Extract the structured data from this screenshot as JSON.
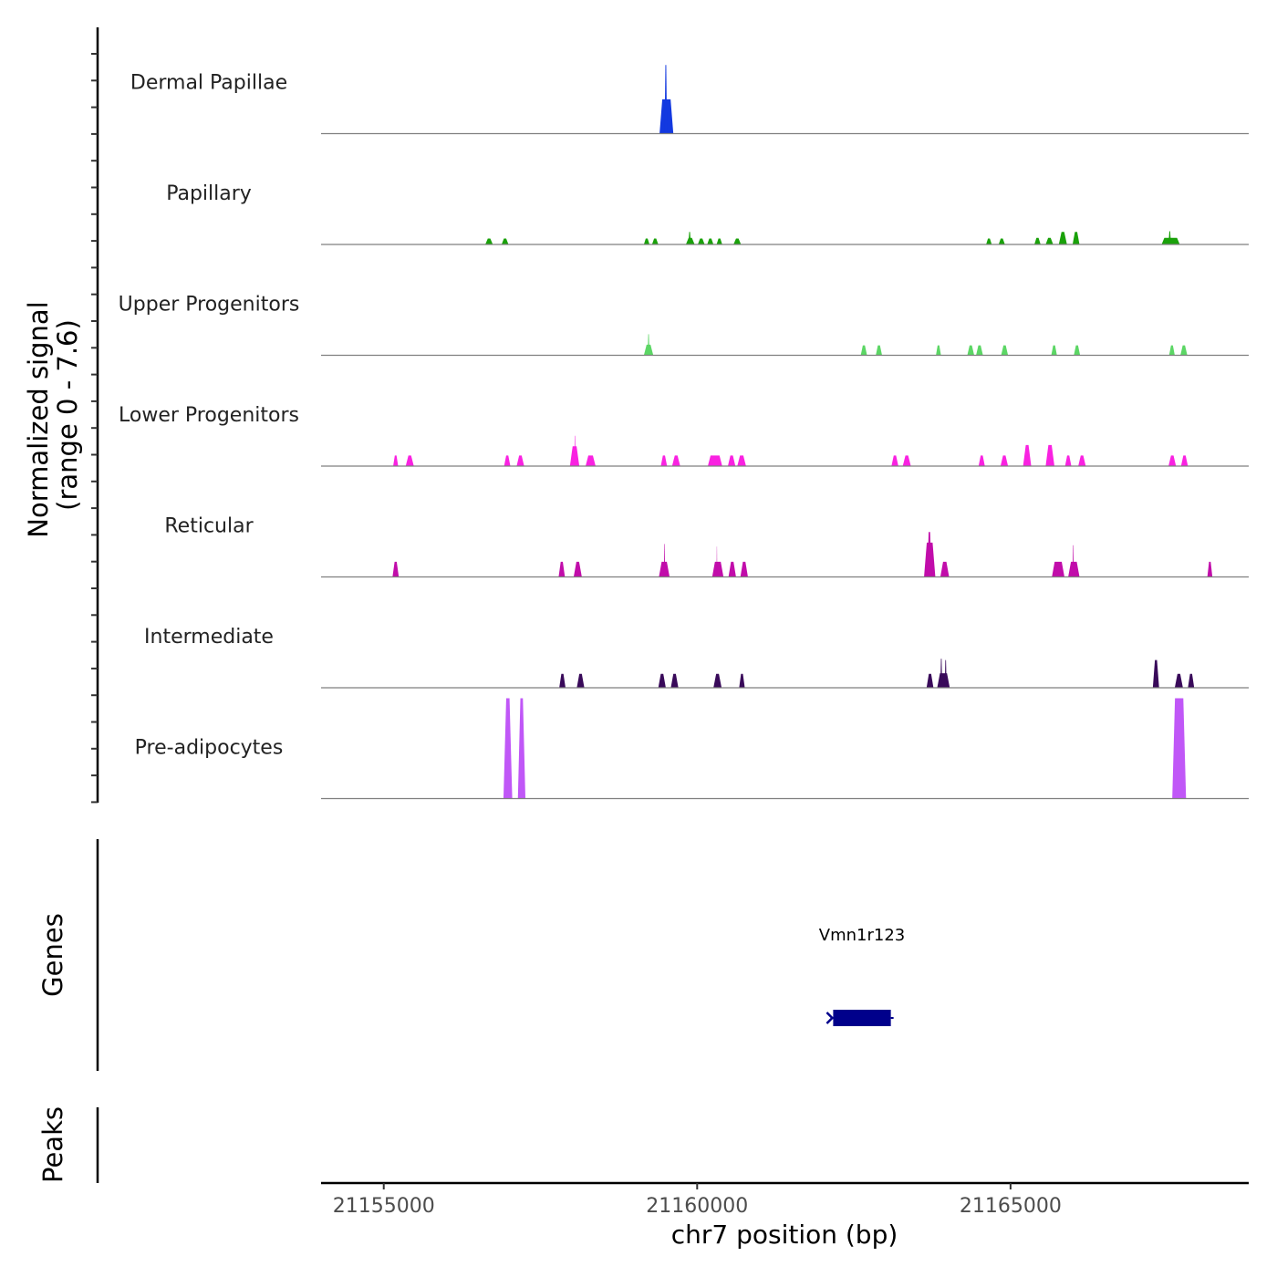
{
  "chart_data": {
    "type": "area",
    "chromosome": "chr7",
    "xlabel": "chr7 position (bp)",
    "xlim": [
      21154000,
      21168800
    ],
    "x_ticks": [
      21155000,
      21160000,
      21165000
    ],
    "x_tick_labels": [
      "21155000",
      "21160000",
      "21165000"
    ],
    "signal_ylabel": [
      "Normalized signal",
      "(range 0 - 7.6)"
    ],
    "ylim": [
      0,
      7.6
    ],
    "tracks": [
      {
        "name": "Dermal Papillae",
        "color": "#1339E0",
        "peaks": [
          [
            21159400,
            21159620,
            2.6
          ],
          [
            21159480,
            21159520,
            5.2
          ]
        ]
      },
      {
        "name": "Papillary",
        "color": "#1AA10A",
        "peaks": [
          [
            21156620,
            21156740,
            0.45
          ],
          [
            21156880,
            21156990,
            0.45
          ],
          [
            21159150,
            21159240,
            0.45
          ],
          [
            21159280,
            21159380,
            0.45
          ],
          [
            21159820,
            21159960,
            0.5
          ],
          [
            21159860,
            21159900,
            0.95
          ],
          [
            21160010,
            21160120,
            0.45
          ],
          [
            21160160,
            21160260,
            0.45
          ],
          [
            21160310,
            21160400,
            0.45
          ],
          [
            21160580,
            21160700,
            0.45
          ],
          [
            21164610,
            21164700,
            0.45
          ],
          [
            21164810,
            21164910,
            0.45
          ],
          [
            21165380,
            21165480,
            0.5
          ],
          [
            21165560,
            21165680,
            0.5
          ],
          [
            21165770,
            21165900,
            0.95
          ],
          [
            21165990,
            21166100,
            0.95
          ],
          [
            21167410,
            21167700,
            0.5
          ],
          [
            21167520,
            21167560,
            1.0
          ]
        ]
      },
      {
        "name": "Upper Progenitors",
        "color": "#5CD665",
        "peaks": [
          [
            21159150,
            21159300,
            0.8
          ],
          [
            21159210,
            21159240,
            1.6
          ],
          [
            21162610,
            21162710,
            0.75
          ],
          [
            21162850,
            21162950,
            0.75
          ],
          [
            21163810,
            21163890,
            0.75
          ],
          [
            21164310,
            21164420,
            0.75
          ],
          [
            21164450,
            21164560,
            0.75
          ],
          [
            21164850,
            21164960,
            0.75
          ],
          [
            21165650,
            21165740,
            0.75
          ],
          [
            21166010,
            21166110,
            0.75
          ],
          [
            21167530,
            21167620,
            0.75
          ],
          [
            21167710,
            21167820,
            0.75
          ]
        ]
      },
      {
        "name": "Lower Progenitors",
        "color": "#F922E1",
        "peaks": [
          [
            21155150,
            21155230,
            0.8
          ],
          [
            21155350,
            21155480,
            0.8
          ],
          [
            21156920,
            21157020,
            0.8
          ],
          [
            21157120,
            21157240,
            0.8
          ],
          [
            21157970,
            21158120,
            1.5
          ],
          [
            21158040,
            21158060,
            2.3
          ],
          [
            21158220,
            21158380,
            0.8
          ],
          [
            21159420,
            21159520,
            0.8
          ],
          [
            21159600,
            21159730,
            0.8
          ],
          [
            21160170,
            21160400,
            0.8
          ],
          [
            21160490,
            21160610,
            0.8
          ],
          [
            21160640,
            21160780,
            0.8
          ],
          [
            21163100,
            21163210,
            0.8
          ],
          [
            21163280,
            21163410,
            0.8
          ],
          [
            21164490,
            21164590,
            0.8
          ],
          [
            21164840,
            21164960,
            0.8
          ],
          [
            21165200,
            21165330,
            1.6
          ],
          [
            21165560,
            21165700,
            1.6
          ],
          [
            21165870,
            21165970,
            0.8
          ],
          [
            21166080,
            21166200,
            0.8
          ],
          [
            21167520,
            21167640,
            0.8
          ],
          [
            21167720,
            21167830,
            0.8
          ]
        ]
      },
      {
        "name": "Reticular",
        "color": "#C10DAA",
        "peaks": [
          [
            21155140,
            21155240,
            1.15
          ],
          [
            21157790,
            21157890,
            1.15
          ],
          [
            21158030,
            21158160,
            1.15
          ],
          [
            21159390,
            21159560,
            1.15
          ],
          [
            21159470,
            21159490,
            2.5
          ],
          [
            21160240,
            21160420,
            1.15
          ],
          [
            21160310,
            21160320,
            2.3
          ],
          [
            21160500,
            21160620,
            1.15
          ],
          [
            21160690,
            21160810,
            1.15
          ],
          [
            21163620,
            21163800,
            2.6
          ],
          [
            21163670,
            21163740,
            3.4
          ],
          [
            21163880,
            21164020,
            1.15
          ],
          [
            21165660,
            21165860,
            1.15
          ],
          [
            21165920,
            21166100,
            1.15
          ],
          [
            21165990,
            21166010,
            2.4
          ],
          [
            21168140,
            21168220,
            1.15
          ]
        ]
      },
      {
        "name": "Intermediate",
        "color": "#390A5A",
        "peaks": [
          [
            21157800,
            21157900,
            1.05
          ],
          [
            21158080,
            21158200,
            1.05
          ],
          [
            21159380,
            21159500,
            1.05
          ],
          [
            21159580,
            21159700,
            1.05
          ],
          [
            21160260,
            21160390,
            1.05
          ],
          [
            21160670,
            21160760,
            1.05
          ],
          [
            21163660,
            21163770,
            1.05
          ],
          [
            21163830,
            21164030,
            1.1
          ],
          [
            21163880,
            21163910,
            2.2
          ],
          [
            21163950,
            21163980,
            2.1
          ],
          [
            21167270,
            21167370,
            2.1
          ],
          [
            21167620,
            21167750,
            1.05
          ],
          [
            21167830,
            21167930,
            1.05
          ]
        ]
      },
      {
        "name": "Pre-adipocytes",
        "color": "#C057F7",
        "peaks": [
          [
            21156910,
            21157050,
            7.6
          ],
          [
            21157140,
            21157260,
            7.6
          ],
          [
            21167580,
            21167800,
            7.6
          ]
        ]
      }
    ],
    "genes_label": "Genes",
    "genes": [
      {
        "name": "Vmn1r123",
        "start": 21162170,
        "end": 21163090,
        "strand": "-",
        "color": "#00008B"
      }
    ],
    "peaks_label": "Peaks",
    "peaks_track": []
  }
}
